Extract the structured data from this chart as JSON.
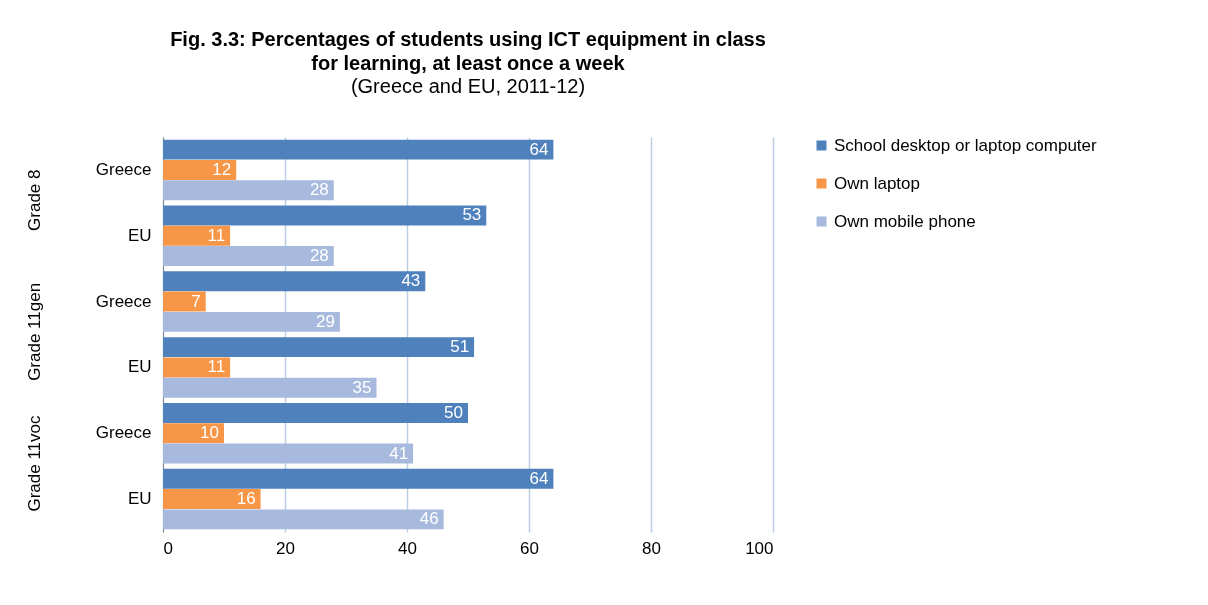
{
  "chart_data": {
    "type": "bar",
    "orientation": "horizontal",
    "title": "Fig. 3.3: Percentages of students using ICT equipment in class for learning, at least once a week",
    "subtitle": "(Greece and EU, 2011-12)",
    "categories": [
      "Greece",
      "EU",
      "Greece",
      "EU",
      "Greece",
      "EU"
    ],
    "annotations": [
      "Grade 8",
      "Grade 11gen",
      "Grade 11voc"
    ],
    "series": [
      {
        "name": "School desktop or laptop computer",
        "color": "#4f81bd",
        "values": [
          64,
          53,
          43,
          51,
          50,
          64
        ]
      },
      {
        "name": "Own laptop",
        "color": "#f79646",
        "values": [
          12,
          11,
          7,
          11,
          10,
          16
        ]
      },
      {
        "name": "Own mobile phone",
        "color": "#a7b9dd",
        "values": [
          28,
          28,
          29,
          35,
          41,
          46
        ]
      }
    ],
    "xlim": [
      0,
      100
    ],
    "xticks": [
      0,
      20,
      40,
      60,
      80,
      100
    ],
    "grid": "x",
    "legend": "right",
    "data_labels": true
  }
}
